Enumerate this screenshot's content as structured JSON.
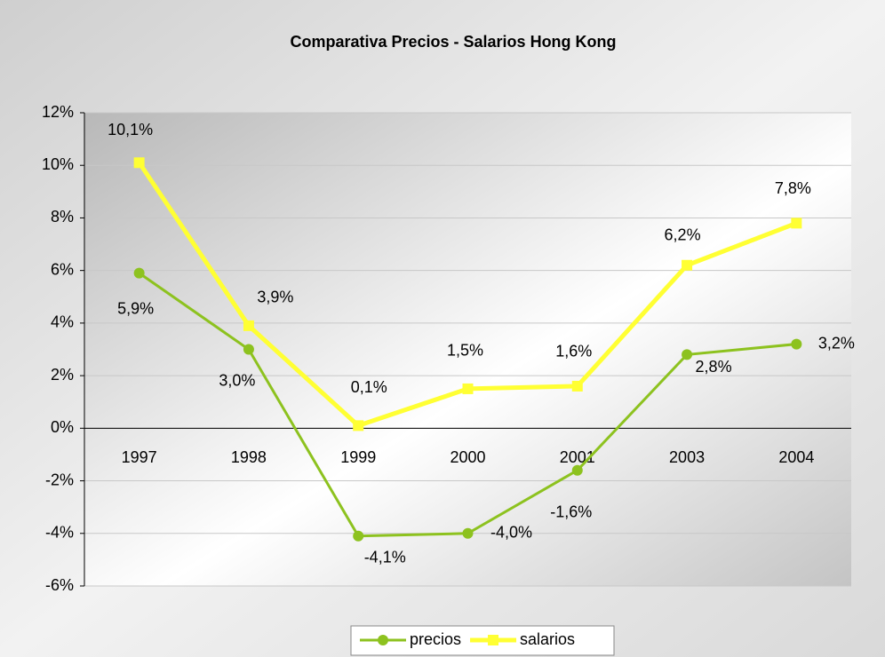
{
  "chart_data": {
    "type": "line",
    "title": "Comparativa Precios - Salarios   Hong Kong",
    "categories": [
      "1997",
      "1998",
      "1999",
      "2000",
      "2001",
      "2003",
      "2004"
    ],
    "series": [
      {
        "name": "precios",
        "color": "#8dc21f",
        "marker": "circle",
        "values": [
          5.9,
          3.0,
          -4.1,
          -4.0,
          -1.6,
          2.8,
          3.2
        ],
        "value_labels": [
          "5,9%",
          "3,0%",
          "-4,1%",
          "-4,0%",
          "-1,6%",
          "2,8%",
          "3,2%"
        ]
      },
      {
        "name": "salarios",
        "color": "#ffff33",
        "marker": "square",
        "values": [
          10.1,
          3.9,
          0.1,
          1.5,
          1.6,
          6.2,
          7.8
        ],
        "value_labels": [
          "10,1%",
          "3,9%",
          "0,1%",
          "1,5%",
          "1,6%",
          "6,2%",
          "7,8%"
        ]
      }
    ],
    "ylim": [
      -6,
      12
    ],
    "yticks": [
      {
        "value": -6,
        "label": "-6%"
      },
      {
        "value": -4,
        "label": "-4%"
      },
      {
        "value": -2,
        "label": "-2%"
      },
      {
        "value": 0,
        "label": "0%"
      },
      {
        "value": 2,
        "label": "2%"
      },
      {
        "value": 4,
        "label": "4%"
      },
      {
        "value": 6,
        "label": "6%"
      },
      {
        "value": 8,
        "label": "8%"
      },
      {
        "value": 10,
        "label": "10%"
      },
      {
        "value": 12,
        "label": "12%"
      }
    ],
    "grid": true,
    "legend": "bottom"
  }
}
